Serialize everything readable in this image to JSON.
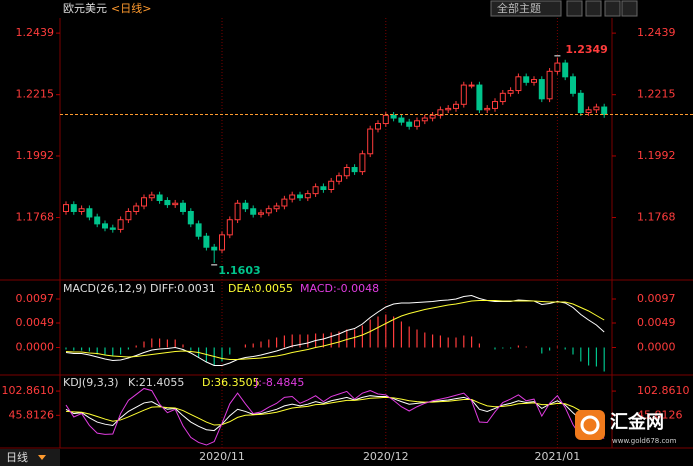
{
  "header": {
    "symbol": "欧元美元",
    "period": "<日线>",
    "theme_button": "全部主题",
    "period_tab": "日线"
  },
  "logo": {
    "name": "汇金网",
    "url": "www.gold678.com"
  },
  "chart_data": [
    {
      "type": "candlestick",
      "up_color": "#ff3c3c",
      "down_color": "#00c48c",
      "last_color": "#ff9a2e",
      "ylim": [
        1.1548,
        1.2494
      ],
      "yticks": [
        1.2439,
        1.2215,
        1.1992,
        1.1768
      ],
      "categories": [
        null,
        null,
        null,
        null,
        null,
        null,
        null,
        null,
        null,
        null,
        null,
        null,
        null,
        null,
        null,
        null,
        null,
        null,
        null,
        null,
        "2020/11",
        null,
        null,
        null,
        null,
        null,
        null,
        null,
        null,
        null,
        null,
        null,
        null,
        null,
        null,
        null,
        null,
        null,
        null,
        null,
        null,
        "2020/12",
        null,
        null,
        null,
        null,
        null,
        null,
        null,
        null,
        null,
        null,
        null,
        null,
        null,
        null,
        null,
        null,
        null,
        null,
        null,
        null,
        null,
        "2021/01",
        null,
        null,
        null,
        null,
        null,
        null
      ],
      "open": [
        1.179,
        1.1815,
        1.179,
        1.18,
        1.177,
        1.1745,
        1.173,
        1.1725,
        1.176,
        1.179,
        1.181,
        1.184,
        1.185,
        1.183,
        1.1815,
        1.182,
        1.179,
        1.1745,
        1.17,
        1.166,
        1.165,
        1.1705,
        1.176,
        1.182,
        1.18,
        1.178,
        1.1785,
        1.18,
        1.181,
        1.1835,
        1.185,
        1.184,
        1.1855,
        1.188,
        1.187,
        1.19,
        1.192,
        1.195,
        1.1935,
        1.2,
        1.209,
        1.211,
        1.214,
        1.213,
        1.2115,
        1.21,
        1.212,
        1.213,
        1.214,
        1.216,
        1.2165,
        1.218,
        1.225,
        1.225,
        1.216,
        1.2165,
        1.219,
        1.222,
        1.223,
        1.228,
        1.226,
        1.227,
        1.22,
        1.23,
        1.233,
        1.228,
        1.222,
        1.215,
        1.216,
        1.217
      ],
      "high": [
        1.1827,
        1.1827,
        1.1812,
        1.1812,
        1.1782,
        1.1757,
        1.1742,
        1.1772,
        1.1802,
        1.1822,
        1.1852,
        1.1862,
        1.1862,
        1.1842,
        1.1832,
        1.1832,
        1.1802,
        1.1757,
        1.1712,
        1.1672,
        1.1717,
        1.1772,
        1.1832,
        1.1832,
        1.1812,
        1.1797,
        1.1812,
        1.1822,
        1.1847,
        1.1862,
        1.1862,
        1.1867,
        1.1892,
        1.1892,
        1.1912,
        1.1932,
        1.1962,
        1.1962,
        1.2012,
        1.2102,
        1.2122,
        1.2152,
        1.2152,
        1.2142,
        1.2127,
        1.2132,
        1.2142,
        1.2152,
        1.2172,
        1.2177,
        1.2192,
        1.2262,
        1.2262,
        1.2262,
        1.2177,
        1.2202,
        1.2232,
        1.2242,
        1.2292,
        1.2292,
        1.2282,
        1.2282,
        1.2312,
        1.2349,
        1.2342,
        1.2292,
        1.2232,
        1.2172,
        1.2182,
        1.2182
      ],
      "low": [
        1.1778,
        1.1778,
        1.1778,
        1.1758,
        1.1733,
        1.1718,
        1.1713,
        1.1713,
        1.1748,
        1.1778,
        1.1798,
        1.1828,
        1.1818,
        1.1803,
        1.1803,
        1.1778,
        1.1733,
        1.1688,
        1.1648,
        1.1603,
        1.1638,
        1.1693,
        1.1748,
        1.1788,
        1.1768,
        1.1768,
        1.1773,
        1.1788,
        1.1798,
        1.1823,
        1.1828,
        1.1828,
        1.1843,
        1.1858,
        1.1858,
        1.1888,
        1.1908,
        1.1923,
        1.1923,
        1.1988,
        1.2078,
        1.2098,
        1.2118,
        1.2103,
        1.2088,
        1.2088,
        1.2108,
        1.2118,
        1.2128,
        1.2148,
        1.2153,
        1.2168,
        1.2238,
        1.2148,
        1.2148,
        1.2153,
        1.2178,
        1.2208,
        1.2218,
        1.2248,
        1.2248,
        1.2188,
        1.2188,
        1.2288,
        1.2268,
        1.2208,
        1.2138,
        1.2138,
        1.2148,
        1.2131
      ],
      "close": [
        1.1815,
        1.179,
        1.18,
        1.177,
        1.1745,
        1.173,
        1.1725,
        1.176,
        1.179,
        1.181,
        1.184,
        1.185,
        1.183,
        1.1815,
        1.182,
        1.179,
        1.1745,
        1.17,
        1.166,
        1.165,
        1.1705,
        1.176,
        1.182,
        1.18,
        1.178,
        1.1785,
        1.18,
        1.181,
        1.1835,
        1.185,
        1.184,
        1.1855,
        1.188,
        1.187,
        1.19,
        1.192,
        1.195,
        1.1935,
        1.2,
        1.209,
        1.211,
        1.214,
        1.213,
        1.2115,
        1.21,
        1.212,
        1.213,
        1.214,
        1.216,
        1.2165,
        1.218,
        1.225,
        1.225,
        1.216,
        1.2165,
        1.219,
        1.222,
        1.223,
        1.228,
        1.226,
        1.227,
        1.22,
        1.23,
        1.233,
        1.228,
        1.222,
        1.215,
        1.216,
        1.217,
        1.2143
      ]
    },
    {
      "type": "macd",
      "title": "MACD(26,12,9)",
      "legend": [
        "DIFF:0.0031",
        "DEA:0.0055",
        "MACD:-0.0048"
      ],
      "ylim": [
        -0.0049,
        0.0131
      ],
      "yticks": [
        0.0097,
        0.0049,
        {
          "value": 0,
          "label": "0.0000"
        }
      ],
      "series": [
        {
          "color": "#ffffff",
          "values": [
            -0.001,
            -0.0012,
            -0.0012,
            -0.0015,
            -0.0019,
            -0.0023,
            -0.0026,
            -0.0025,
            -0.0021,
            -0.0016,
            -0.001,
            -0.0005,
            -0.0003,
            -0.0002,
            0.0,
            -0.0004,
            -0.0011,
            -0.002,
            -0.0029,
            -0.0036,
            -0.0036,
            -0.0031,
            -0.0024,
            -0.002,
            -0.0018,
            -0.0015,
            -0.0011,
            -0.0007,
            -0.0002,
            0.0003,
            0.0006,
            0.0009,
            0.0014,
            0.0017,
            0.0022,
            0.0027,
            0.0034,
            0.0038,
            0.0047,
            0.006,
            0.0071,
            0.0081,
            0.0087,
            0.0089,
            0.0089,
            0.009,
            0.0091,
            0.0092,
            0.0094,
            0.0095,
            0.0097,
            0.0102,
            0.0104,
            0.0098,
            0.0094,
            0.0092,
            0.0092,
            0.0092,
            0.0095,
            0.0094,
            0.0093,
            0.0086,
            0.0088,
            0.0092,
            0.0089,
            0.008,
            0.0066,
            0.0055,
            0.0045,
            0.0031
          ]
        },
        {
          "color": "#ffff33",
          "values": [
            -0.0008,
            -0.0009,
            -0.0009,
            -0.0011,
            -0.0012,
            -0.0015,
            -0.0017,
            -0.0018,
            -0.0019,
            -0.0018,
            -0.0016,
            -0.0014,
            -0.0012,
            -0.001,
            -0.0008,
            -0.0007,
            -0.0008,
            -0.001,
            -0.0014,
            -0.0018,
            -0.0022,
            -0.0024,
            -0.0024,
            -0.0023,
            -0.0022,
            -0.0021,
            -0.0019,
            -0.0017,
            -0.0014,
            -0.001,
            -0.0007,
            -0.0004,
            0.0,
            0.0003,
            0.0007,
            0.0011,
            0.0016,
            0.002,
            0.0025,
            0.0032,
            0.004,
            0.0048,
            0.0056,
            0.0063,
            0.0068,
            0.0072,
            0.0076,
            0.0079,
            0.0082,
            0.0085,
            0.0087,
            0.009,
            0.0093,
            0.0094,
            0.0094,
            0.0094,
            0.0093,
            0.0093,
            0.0093,
            0.0093,
            0.0093,
            0.0092,
            0.0091,
            0.0091,
            0.0091,
            0.0087,
            0.008,
            0.0073,
            0.0064,
            0.0055
          ]
        }
      ],
      "bars": {
        "up_color": "#ff3c3c",
        "down_color": "#00c48c",
        "values": [
          -0.0004,
          -0.0006,
          -0.0006,
          -0.0008,
          -0.0014,
          -0.0016,
          -0.0018,
          -0.0014,
          -0.0004,
          0.0004,
          0.0012,
          0.0018,
          0.0018,
          0.0016,
          0.0016,
          0.0006,
          -0.0006,
          -0.002,
          -0.003,
          -0.0036,
          -0.0028,
          -0.0014,
          0.0,
          0.0006,
          0.0008,
          0.0012,
          0.0016,
          0.002,
          0.0024,
          0.0026,
          0.0026,
          0.0026,
          0.0028,
          0.0028,
          0.003,
          0.0032,
          0.0036,
          0.0036,
          0.0044,
          0.0056,
          0.0062,
          0.0066,
          0.0062,
          0.0052,
          0.0042,
          0.0036,
          0.003,
          0.0026,
          0.0024,
          0.002,
          0.002,
          0.0024,
          0.0022,
          0.0008,
          0.0,
          -0.0004,
          -0.0002,
          -0.0002,
          0.0004,
          0.0002,
          0.0,
          -0.0012,
          -0.0006,
          0.0002,
          -0.0004,
          -0.0014,
          -0.0028,
          -0.0036,
          -0.0038,
          -0.0048
        ]
      }
    },
    {
      "type": "kdj",
      "title": "KDJ(9,3,3)",
      "legend": [
        "K:21.4055",
        "D:36.3505",
        "J:-8.4845"
      ],
      "ylim": [
        -31,
        133.6
      ],
      "yticks": [
        {
          "value": 102.861,
          "label": "102.8610"
        },
        45.8126
      ],
      "series": [
        {
          "color": "#ffffff",
          "values": [
            60,
            50,
            52,
            40,
            30,
            25,
            22,
            40,
            55,
            65,
            75,
            78,
            68,
            60,
            62,
            45,
            30,
            20,
            12,
            10,
            25,
            45,
            60,
            55,
            48,
            50,
            55,
            60,
            68,
            72,
            68,
            72,
            78,
            74,
            80,
            84,
            88,
            82,
            88,
            92,
            90,
            90,
            85,
            78,
            72,
            74,
            76,
            78,
            80,
            82,
            85,
            88,
            82,
            60,
            55,
            62,
            70,
            74,
            80,
            76,
            78,
            62,
            72,
            80,
            70,
            52,
            36,
            30,
            28,
            21.4055
          ]
        },
        {
          "color": "#ffff33",
          "values": [
            55,
            54,
            53,
            49,
            43,
            37,
            32,
            35,
            42,
            50,
            58,
            65,
            66,
            64,
            63,
            57,
            48,
            39,
            30,
            23,
            24,
            31,
            41,
            46,
            47,
            48,
            50,
            53,
            58,
            63,
            65,
            67,
            71,
            72,
            75,
            78,
            81,
            81,
            83,
            86,
            87,
            88,
            87,
            84,
            80,
            78,
            77,
            77,
            78,
            79,
            81,
            83,
            83,
            75,
            68,
            66,
            67,
            69,
            73,
            74,
            75,
            71,
            71,
            74,
            73,
            66,
            56,
            47,
            41,
            36.3505
          ]
        },
        {
          "color": "#e03ce0",
          "values": [
            70,
            42,
            50,
            22,
            4,
            1,
            2,
            50,
            81,
            95,
            109,
            104,
            72,
            52,
            60,
            21,
            -6,
            -18,
            -24,
            -16,
            27,
            73,
            98,
            73,
            50,
            54,
            65,
            74,
            88,
            90,
            74,
            82,
            92,
            78,
            90,
            96,
            102,
            84,
            98,
            104,
            96,
            94,
            81,
            66,
            56,
            66,
            74,
            80,
            84,
            88,
            93,
            98,
            80,
            30,
            29,
            54,
            76,
            84,
            94,
            80,
            84,
            44,
            74,
            92,
            64,
            24,
            -4,
            -4,
            2,
            -8.4845
          ]
        }
      ]
    }
  ]
}
